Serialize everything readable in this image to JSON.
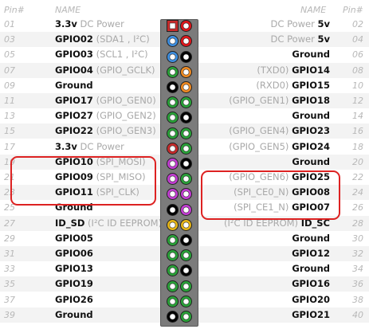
{
  "header": {
    "pin_left": "Pin#",
    "name_left": "NAME",
    "name_right": "NAME",
    "pin_right": "Pin#"
  },
  "colors": {
    "power33": "#c82a2a",
    "power5": "#e0161a",
    "ground": "#000000",
    "gpio": "#29a238",
    "i2c": "#3c8ee0",
    "uart": "#ef8a22",
    "spi": "#c23cd2",
    "eeprom": "#e6b516",
    "callout": "#dd2222"
  },
  "rows": [
    {
      "l_pin": "01",
      "l_main": "3.3v",
      "l_sub": " DC Power",
      "l_type": "power33",
      "r_type": "power5",
      "r_sub": "DC Power ",
      "r_main": "5v",
      "r_pin": "02"
    },
    {
      "l_pin": "03",
      "l_main": "GPIO02",
      "l_sub": " (SDA1 , I²C)",
      "l_type": "i2c",
      "r_type": "power5",
      "r_sub": "DC Power ",
      "r_main": "5v",
      "r_pin": "04"
    },
    {
      "l_pin": "05",
      "l_main": "GPIO03",
      "l_sub": " (SCL1 , I²C)",
      "l_type": "i2c",
      "r_type": "ground",
      "r_sub": "",
      "r_main": "Ground",
      "r_pin": "06"
    },
    {
      "l_pin": "07",
      "l_main": "GPIO04",
      "l_sub": " (GPIO_GCLK)",
      "l_type": "gpio",
      "r_type": "uart",
      "r_sub": "(TXD0) ",
      "r_main": "GPIO14",
      "r_pin": "08"
    },
    {
      "l_pin": "09",
      "l_main": "Ground",
      "l_sub": "",
      "l_type": "ground",
      "r_type": "uart",
      "r_sub": "(RXD0) ",
      "r_main": "GPIO15",
      "r_pin": "10"
    },
    {
      "l_pin": "11",
      "l_main": "GPIO17",
      "l_sub": " (GPIO_GEN0)",
      "l_type": "gpio",
      "r_type": "gpio",
      "r_sub": "(GPIO_GEN1) ",
      "r_main": "GPIO18",
      "r_pin": "12"
    },
    {
      "l_pin": "13",
      "l_main": "GPIO27",
      "l_sub": " (GPIO_GEN2)",
      "l_type": "gpio",
      "r_type": "ground",
      "r_sub": "",
      "r_main": "Ground",
      "r_pin": "14"
    },
    {
      "l_pin": "15",
      "l_main": "GPIO22",
      "l_sub": " (GPIO_GEN3)",
      "l_type": "gpio",
      "r_type": "gpio",
      "r_sub": "(GPIO_GEN4) ",
      "r_main": "GPIO23",
      "r_pin": "16"
    },
    {
      "l_pin": "17",
      "l_main": "3.3v",
      "l_sub": " DC Power",
      "l_type": "power33",
      "r_type": "gpio",
      "r_sub": "(GPIO_GEN5) ",
      "r_main": "GPIO24",
      "r_pin": "18"
    },
    {
      "l_pin": "19",
      "l_main": "GPIO10",
      "l_sub": " (SPI_MOSI)",
      "l_type": "spi",
      "r_type": "ground",
      "r_sub": "",
      "r_main": "Ground",
      "r_pin": "20"
    },
    {
      "l_pin": "21",
      "l_main": "GPIO09",
      "l_sub": " (SPI_MISO)",
      "l_type": "spi",
      "r_type": "gpio",
      "r_sub": "(GPIO_GEN6) ",
      "r_main": "GPIO25",
      "r_pin": "22"
    },
    {
      "l_pin": "23",
      "l_main": "GPIO11",
      "l_sub": " (SPI_CLK)",
      "l_type": "spi",
      "r_type": "spi",
      "r_sub": "(SPI_CE0_N) ",
      "r_main": "GPIO08",
      "r_pin": "24"
    },
    {
      "l_pin": "25",
      "l_main": "Ground",
      "l_sub": "",
      "l_type": "ground",
      "r_type": "spi",
      "r_sub": "(SPI_CE1_N) ",
      "r_main": "GPIO07",
      "r_pin": "26"
    },
    {
      "l_pin": "27",
      "l_main": "ID_SD",
      "l_sub": " (I²C ID EEPROM)",
      "l_type": "eeprom",
      "r_type": "eeprom",
      "r_sub": "(I²C ID EEPROM) ",
      "r_main": "ID_SC",
      "r_pin": "28"
    },
    {
      "l_pin": "29",
      "l_main": "GPIO05",
      "l_sub": "",
      "l_type": "gpio",
      "r_type": "ground",
      "r_sub": "",
      "r_main": "Ground",
      "r_pin": "30"
    },
    {
      "l_pin": "31",
      "l_main": "GPIO06",
      "l_sub": "",
      "l_type": "gpio",
      "r_type": "gpio",
      "r_sub": "",
      "r_main": "GPIO12",
      "r_pin": "32"
    },
    {
      "l_pin": "33",
      "l_main": "GPIO13",
      "l_sub": "",
      "l_type": "gpio",
      "r_type": "ground",
      "r_sub": "",
      "r_main": "Ground",
      "r_pin": "34"
    },
    {
      "l_pin": "35",
      "l_main": "GPIO19",
      "l_sub": "",
      "l_type": "gpio",
      "r_type": "gpio",
      "r_sub": "",
      "r_main": "GPIO16",
      "r_pin": "36"
    },
    {
      "l_pin": "37",
      "l_main": "GPIO26",
      "l_sub": "",
      "l_type": "gpio",
      "r_type": "gpio",
      "r_sub": "",
      "r_main": "GPIO20",
      "r_pin": "38"
    },
    {
      "l_pin": "39",
      "l_main": "Ground",
      "l_sub": "",
      "l_type": "ground",
      "r_type": "gpio",
      "r_sub": "",
      "r_main": "GPIO21",
      "r_pin": "40"
    }
  ],
  "callouts": [
    {
      "label": "left-spi-callout"
    },
    {
      "label": "right-spi-callout"
    }
  ]
}
